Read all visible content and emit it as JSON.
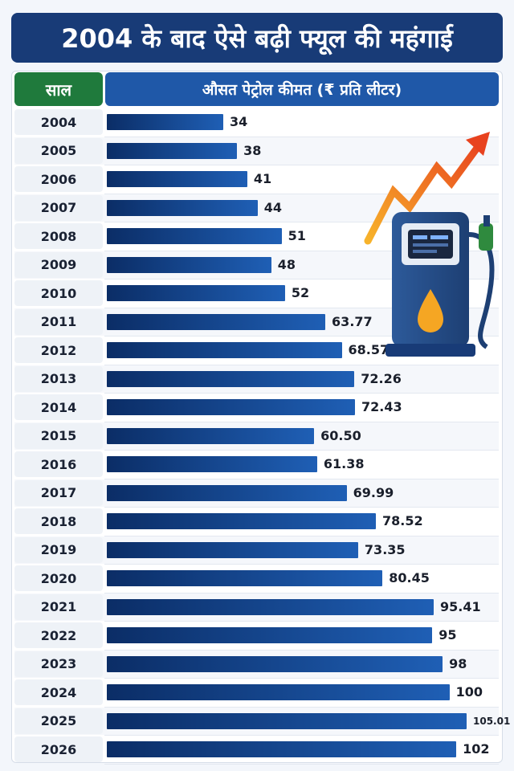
{
  "title": "2004 के बाद ऐसे बढ़ी फ्यूल की महंगाई",
  "header": {
    "year_label": "साल",
    "price_label": "औसत पेट्रोल कीमत (₹ प्रति लीटर)"
  },
  "colors": {
    "title_bg": "#183b77",
    "year_header_bg": "#1f7a3c",
    "price_header_bg": "#1f58a8",
    "bar_dark": "#0b2d66",
    "bar_light": "#1f5fb5"
  },
  "illustration": {
    "icon": "fuel-pump-icon",
    "arrow_icon": "rising-arrow-icon"
  },
  "chart_data": {
    "type": "bar",
    "orientation": "horizontal",
    "categories": [
      "2004",
      "2005",
      "2006",
      "2007",
      "2008",
      "2009",
      "2010",
      "2011",
      "2012",
      "2013",
      "2014",
      "2015",
      "2016",
      "2017",
      "2018",
      "2019",
      "2020",
      "2021",
      "2022",
      "2023",
      "2024",
      "2025",
      "2026"
    ],
    "values": [
      34,
      38,
      41,
      44,
      51,
      48,
      52,
      63.77,
      68.57,
      72.26,
      72.43,
      60.5,
      61.38,
      69.99,
      78.52,
      73.35,
      80.45,
      95.41,
      95,
      98,
      100,
      105.01,
      102
    ],
    "labels": [
      "34",
      "38",
      "41",
      "44",
      "51",
      "48",
      "52",
      "63.77",
      "68.57",
      "72.26",
      "72.43",
      "60.50",
      "61.38",
      "69.99",
      "78.52",
      "73.35",
      "80.45",
      "95.41",
      "95",
      "98",
      "100",
      "105.01",
      "102"
    ],
    "grid": false,
    "legend": "none"
  }
}
